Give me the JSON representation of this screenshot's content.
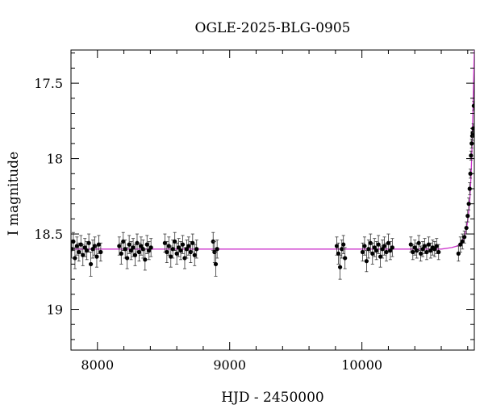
{
  "chart_data": {
    "type": "scatter",
    "title": "OGLE-2025-BLG-0905",
    "xlabel": "HJD - 2450000",
    "ylabel": "I magnitude",
    "xlim": [
      7800,
      10850
    ],
    "ylim": [
      19.27,
      17.28
    ],
    "y_inverted": true,
    "x_ticks": [
      8000,
      9000,
      10000
    ],
    "x_tick_labels": [
      "8000",
      "9000",
      "10000"
    ],
    "y_ticks": [
      17.5,
      18,
      18.5,
      19
    ],
    "y_tick_labels": [
      "17.5",
      "18",
      "18.5",
      "19"
    ],
    "grid": false,
    "series": [
      {
        "kind": "points_with_errorbars",
        "marker_color": "#000000",
        "x": [
          7805,
          7818,
          7830,
          7845,
          7860,
          7875,
          7890,
          7905,
          7920,
          7935,
          7950,
          7965,
          7980,
          7995,
          8010,
          8025,
          8165,
          8180,
          8195,
          8210,
          8225,
          8240,
          8255,
          8270,
          8285,
          8300,
          8315,
          8330,
          8345,
          8360,
          8375,
          8390,
          8405,
          8510,
          8525,
          8540,
          8555,
          8570,
          8585,
          8600,
          8615,
          8630,
          8645,
          8660,
          8675,
          8690,
          8705,
          8720,
          8735,
          8750,
          8875,
          8885,
          8895,
          8905,
          9810,
          9822,
          9835,
          9848,
          9860,
          9872,
          10005,
          10020,
          10035,
          10050,
          10065,
          10080,
          10095,
          10110,
          10125,
          10140,
          10155,
          10170,
          10185,
          10200,
          10215,
          10230,
          10370,
          10385,
          10400,
          10415,
          10430,
          10445,
          10460,
          10475,
          10490,
          10505,
          10520,
          10535,
          10550,
          10565,
          10580,
          10730,
          10745,
          10760,
          10775,
          10790,
          10800,
          10808,
          10815,
          10820,
          10825,
          10830,
          10834,
          10838,
          10842,
          10846
        ],
        "y": [
          18.6,
          18.55,
          18.66,
          18.58,
          18.62,
          18.57,
          18.64,
          18.59,
          18.61,
          18.56,
          18.7,
          18.6,
          18.58,
          18.65,
          18.57,
          18.62,
          18.58,
          18.63,
          18.55,
          18.6,
          18.66,
          18.57,
          18.61,
          18.59,
          18.64,
          18.56,
          18.62,
          18.58,
          18.6,
          18.67,
          18.57,
          18.61,
          18.59,
          18.56,
          18.62,
          18.58,
          18.65,
          18.6,
          18.55,
          18.63,
          18.59,
          18.61,
          18.57,
          18.66,
          18.6,
          18.58,
          18.62,
          18.56,
          18.64,
          18.6,
          18.55,
          18.62,
          18.7,
          18.6,
          18.58,
          18.63,
          18.72,
          18.6,
          18.57,
          18.66,
          18.62,
          18.58,
          18.68,
          18.6,
          18.56,
          18.63,
          18.59,
          18.61,
          18.57,
          18.65,
          18.6,
          18.58,
          18.62,
          18.56,
          18.61,
          18.59,
          18.57,
          18.62,
          18.59,
          18.61,
          18.56,
          18.63,
          18.6,
          18.58,
          18.62,
          18.57,
          18.61,
          18.59,
          18.6,
          18.58,
          18.62,
          18.63,
          18.57,
          18.55,
          18.52,
          18.46,
          18.38,
          18.3,
          18.2,
          18.1,
          17.98,
          17.9,
          17.85,
          17.83,
          17.8,
          17.65
        ],
        "err": [
          0.06,
          0.06,
          0.07,
          0.06,
          0.06,
          0.06,
          0.07,
          0.06,
          0.06,
          0.06,
          0.08,
          0.06,
          0.06,
          0.07,
          0.06,
          0.06,
          0.06,
          0.07,
          0.06,
          0.06,
          0.07,
          0.06,
          0.06,
          0.06,
          0.07,
          0.06,
          0.06,
          0.06,
          0.06,
          0.07,
          0.06,
          0.06,
          0.06,
          0.06,
          0.07,
          0.06,
          0.07,
          0.06,
          0.06,
          0.07,
          0.06,
          0.06,
          0.06,
          0.07,
          0.06,
          0.06,
          0.07,
          0.06,
          0.07,
          0.06,
          0.06,
          0.07,
          0.08,
          0.06,
          0.06,
          0.07,
          0.08,
          0.06,
          0.06,
          0.07,
          0.06,
          0.06,
          0.07,
          0.06,
          0.06,
          0.07,
          0.06,
          0.06,
          0.06,
          0.07,
          0.06,
          0.06,
          0.06,
          0.06,
          0.06,
          0.06,
          0.05,
          0.05,
          0.05,
          0.05,
          0.05,
          0.05,
          0.05,
          0.05,
          0.05,
          0.05,
          0.05,
          0.05,
          0.05,
          0.05,
          0.05,
          0.05,
          0.05,
          0.05,
          0.04,
          0.04,
          0.04,
          0.04,
          0.04,
          0.03,
          0.03,
          0.03,
          0.03,
          0.03,
          0.03,
          0.03
        ]
      },
      {
        "kind": "model_curve",
        "color": "#cc33cc",
        "baseline": 18.6,
        "peak_x": 10850,
        "x": [
          7800,
          10600,
          10680,
          10720,
          10750,
          10770,
          10790,
          10805,
          10815,
          10825,
          10832,
          10838,
          10843,
          10847,
          10850
        ],
        "y": [
          18.6,
          18.6,
          18.59,
          18.58,
          18.56,
          18.53,
          18.47,
          18.38,
          18.28,
          18.12,
          17.95,
          17.75,
          17.55,
          17.38,
          17.28
        ]
      }
    ]
  }
}
